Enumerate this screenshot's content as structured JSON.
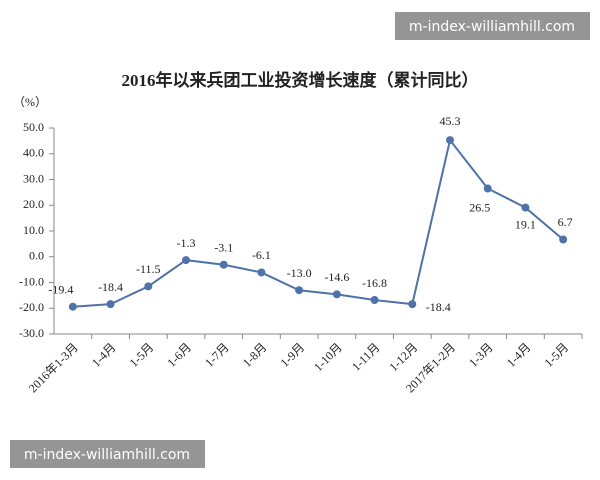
{
  "chart_data": {
    "type": "line",
    "title": "2016年以来兵团工业投资增长速度（累计同比）",
    "y_label": "（%）",
    "categories": [
      "2016年1-3月",
      "1-4月",
      "1-5月",
      "1-6月",
      "1-7月",
      "1-8月",
      "1-9月",
      "1-10月",
      "1-11月",
      "1-12月",
      "2017年1-2月",
      "1-3月",
      "1-4月",
      "1-5月"
    ],
    "values": [
      -19.4,
      -18.4,
      -11.5,
      -1.3,
      -3.1,
      -6.1,
      -13.0,
      -14.6,
      -16.8,
      -18.4,
      45.3,
      26.5,
      19.1,
      6.7
    ],
    "value_labels": [
      "-19.4",
      "-18.4",
      "-11.5",
      "-1.3",
      "-3.1",
      "-6.1",
      "-13.0",
      "-14.6",
      "-16.8",
      "-18.4",
      "45.3",
      "26.5",
      "19.1",
      "6.7"
    ],
    "color": "#4f72a8",
    "ylim": [
      -30,
      50
    ],
    "yticks": [
      {
        "value": -30,
        "label": "-30.0"
      },
      {
        "value": -20,
        "label": "-20.0"
      },
      {
        "value": -10,
        "label": "-10.0"
      },
      {
        "value": 0,
        "label": "0.0"
      },
      {
        "value": 10,
        "label": "10.0"
      },
      {
        "value": 20,
        "label": "20.0"
      },
      {
        "value": 30,
        "label": "30.0"
      },
      {
        "value": 40,
        "label": "40.0"
      },
      {
        "value": 50,
        "label": "50.0"
      }
    ],
    "grid": false
  },
  "watermarks": [
    "m-index-williamhill.com",
    "m-index-williamhill.com"
  ]
}
